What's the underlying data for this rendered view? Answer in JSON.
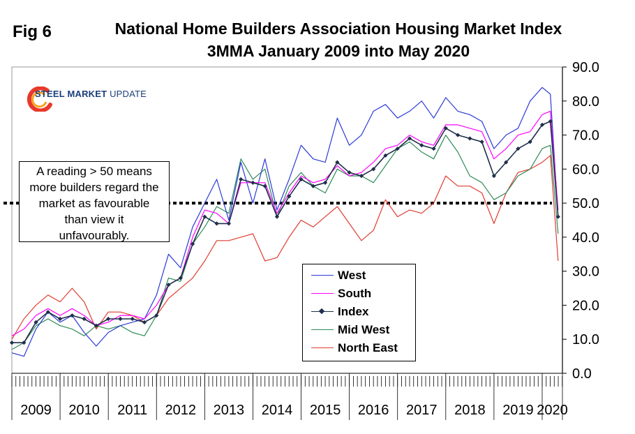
{
  "figure": {
    "fig_label": "Fig 6",
    "title_line1": "National Home Builders Association Housing Market Index",
    "title_line2": "3MMA January 2009 into May 2020",
    "logo_text_bold": "STEEL MARKET",
    "logo_text_normal": " UPDATE",
    "annotation_lines": [
      "A reading > 50 means",
      "more builders regard the",
      "market as favourable",
      "than view it",
      "unfavourably."
    ]
  },
  "chart_data": {
    "type": "line",
    "x_axis": {
      "categories": [
        "2009",
        "2010",
        "2011",
        "2012",
        "2013",
        "2014",
        "2015",
        "2016",
        "2017",
        "2018",
        "2019",
        "2020"
      ],
      "range": [
        2009.0,
        2020.42
      ]
    },
    "y_axis": {
      "position": "right",
      "ylim": [
        0,
        90
      ],
      "ticks": [
        "0.0",
        "10.0",
        "20.0",
        "30.0",
        "40.0",
        "50.0",
        "60.0",
        "70.0",
        "80.0",
        "90.0"
      ]
    },
    "reference_line": {
      "y": 50,
      "style": "dotted"
    },
    "legend_position": "center-bottom",
    "colors": {
      "West": "#2b3bd6",
      "South": "#ff00ff",
      "Index": "#1f2f4a",
      "Mid West": "#2e8b57",
      "North East": "#e03c31"
    },
    "series": [
      {
        "name": "West",
        "points": [
          [
            2009.0,
            6
          ],
          [
            2009.25,
            5
          ],
          [
            2009.5,
            13
          ],
          [
            2009.75,
            18
          ],
          [
            2010.0,
            15
          ],
          [
            2010.25,
            17
          ],
          [
            2010.5,
            12
          ],
          [
            2010.75,
            8
          ],
          [
            2011.0,
            12
          ],
          [
            2011.25,
            14
          ],
          [
            2011.5,
            15
          ],
          [
            2011.75,
            16
          ],
          [
            2012.0,
            23
          ],
          [
            2012.25,
            35
          ],
          [
            2012.5,
            31
          ],
          [
            2012.75,
            43
          ],
          [
            2013.0,
            50
          ],
          [
            2013.25,
            57
          ],
          [
            2013.5,
            45
          ],
          [
            2013.75,
            62
          ],
          [
            2014.0,
            50
          ],
          [
            2014.25,
            63
          ],
          [
            2014.5,
            48
          ],
          [
            2014.75,
            57
          ],
          [
            2015.0,
            67
          ],
          [
            2015.25,
            63
          ],
          [
            2015.5,
            62
          ],
          [
            2015.75,
            75
          ],
          [
            2016.0,
            67
          ],
          [
            2016.25,
            70
          ],
          [
            2016.5,
            77
          ],
          [
            2016.75,
            79
          ],
          [
            2017.0,
            75
          ],
          [
            2017.25,
            77
          ],
          [
            2017.5,
            80
          ],
          [
            2017.75,
            75
          ],
          [
            2018.0,
            81
          ],
          [
            2018.25,
            77
          ],
          [
            2018.5,
            76
          ],
          [
            2018.75,
            74
          ],
          [
            2019.0,
            66
          ],
          [
            2019.25,
            70
          ],
          [
            2019.5,
            72
          ],
          [
            2019.75,
            80
          ],
          [
            2020.0,
            84
          ],
          [
            2020.17,
            82
          ],
          [
            2020.33,
            46
          ]
        ]
      },
      {
        "name": "South",
        "points": [
          [
            2009.0,
            11
          ],
          [
            2009.25,
            13
          ],
          [
            2009.5,
            17
          ],
          [
            2009.75,
            19
          ],
          [
            2010.0,
            17
          ],
          [
            2010.25,
            19
          ],
          [
            2010.5,
            17
          ],
          [
            2010.75,
            14
          ],
          [
            2011.0,
            15
          ],
          [
            2011.25,
            17
          ],
          [
            2011.5,
            17
          ],
          [
            2011.75,
            16
          ],
          [
            2012.0,
            20
          ],
          [
            2012.25,
            26
          ],
          [
            2012.5,
            28
          ],
          [
            2012.75,
            40
          ],
          [
            2013.0,
            48
          ],
          [
            2013.25,
            47
          ],
          [
            2013.5,
            44
          ],
          [
            2013.75,
            56
          ],
          [
            2014.0,
            56
          ],
          [
            2014.25,
            56
          ],
          [
            2014.5,
            47
          ],
          [
            2014.75,
            53
          ],
          [
            2015.0,
            58
          ],
          [
            2015.25,
            56
          ],
          [
            2015.5,
            57
          ],
          [
            2015.75,
            61
          ],
          [
            2016.0,
            58
          ],
          [
            2016.25,
            59
          ],
          [
            2016.5,
            62
          ],
          [
            2016.75,
            66
          ],
          [
            2017.0,
            67
          ],
          [
            2017.25,
            70
          ],
          [
            2017.5,
            68
          ],
          [
            2017.75,
            67
          ],
          [
            2018.0,
            73
          ],
          [
            2018.25,
            73
          ],
          [
            2018.5,
            72
          ],
          [
            2018.75,
            71
          ],
          [
            2019.0,
            63
          ],
          [
            2019.25,
            66
          ],
          [
            2019.5,
            70
          ],
          [
            2019.75,
            71
          ],
          [
            2020.0,
            76
          ],
          [
            2020.17,
            77
          ],
          [
            2020.33,
            48
          ]
        ]
      },
      {
        "name": "Index",
        "points": [
          [
            2009.0,
            9
          ],
          [
            2009.25,
            9
          ],
          [
            2009.5,
            15
          ],
          [
            2009.75,
            18
          ],
          [
            2010.0,
            16
          ],
          [
            2010.25,
            17
          ],
          [
            2010.5,
            16
          ],
          [
            2010.75,
            14
          ],
          [
            2011.0,
            16
          ],
          [
            2011.25,
            16
          ],
          [
            2011.5,
            16
          ],
          [
            2011.75,
            15
          ],
          [
            2012.0,
            17
          ],
          [
            2012.25,
            26
          ],
          [
            2012.5,
            28
          ],
          [
            2012.75,
            38
          ],
          [
            2013.0,
            46
          ],
          [
            2013.25,
            44
          ],
          [
            2013.5,
            44
          ],
          [
            2013.75,
            57
          ],
          [
            2014.0,
            56
          ],
          [
            2014.25,
            55
          ],
          [
            2014.5,
            46
          ],
          [
            2014.75,
            52
          ],
          [
            2015.0,
            57
          ],
          [
            2015.25,
            55
          ],
          [
            2015.5,
            56
          ],
          [
            2015.75,
            62
          ],
          [
            2016.0,
            59
          ],
          [
            2016.25,
            58
          ],
          [
            2016.5,
            60
          ],
          [
            2016.75,
            64
          ],
          [
            2017.0,
            66
          ],
          [
            2017.25,
            69
          ],
          [
            2017.5,
            67
          ],
          [
            2017.75,
            66
          ],
          [
            2018.0,
            72
          ],
          [
            2018.25,
            70
          ],
          [
            2018.5,
            69
          ],
          [
            2018.75,
            68
          ],
          [
            2019.0,
            58
          ],
          [
            2019.25,
            62
          ],
          [
            2019.5,
            66
          ],
          [
            2019.75,
            68
          ],
          [
            2020.0,
            73
          ],
          [
            2020.17,
            74
          ],
          [
            2020.33,
            46
          ]
        ]
      },
      {
        "name": "Mid West",
        "points": [
          [
            2009.0,
            7
          ],
          [
            2009.25,
            9
          ],
          [
            2009.5,
            14
          ],
          [
            2009.75,
            16
          ],
          [
            2010.0,
            14
          ],
          [
            2010.25,
            13
          ],
          [
            2010.5,
            11
          ],
          [
            2010.75,
            14
          ],
          [
            2011.0,
            13
          ],
          [
            2011.25,
            14
          ],
          [
            2011.5,
            12
          ],
          [
            2011.75,
            11
          ],
          [
            2012.0,
            17
          ],
          [
            2012.25,
            28
          ],
          [
            2012.5,
            27
          ],
          [
            2012.75,
            38
          ],
          [
            2013.0,
            43
          ],
          [
            2013.25,
            49
          ],
          [
            2013.5,
            47
          ],
          [
            2013.75,
            63
          ],
          [
            2014.0,
            57
          ],
          [
            2014.25,
            60
          ],
          [
            2014.5,
            46
          ],
          [
            2014.75,
            55
          ],
          [
            2015.0,
            59
          ],
          [
            2015.25,
            55
          ],
          [
            2015.5,
            53
          ],
          [
            2015.75,
            60
          ],
          [
            2016.0,
            58
          ],
          [
            2016.25,
            58
          ],
          [
            2016.5,
            56
          ],
          [
            2016.75,
            61
          ],
          [
            2017.0,
            66
          ],
          [
            2017.25,
            68
          ],
          [
            2017.5,
            65
          ],
          [
            2017.75,
            63
          ],
          [
            2018.0,
            70
          ],
          [
            2018.25,
            65
          ],
          [
            2018.5,
            58
          ],
          [
            2018.75,
            56
          ],
          [
            2019.0,
            51
          ],
          [
            2019.25,
            53
          ],
          [
            2019.5,
            58
          ],
          [
            2019.75,
            60
          ],
          [
            2020.0,
            66
          ],
          [
            2020.17,
            67
          ],
          [
            2020.33,
            41
          ]
        ]
      },
      {
        "name": "North East",
        "points": [
          [
            2009.0,
            10
          ],
          [
            2009.25,
            16
          ],
          [
            2009.5,
            20
          ],
          [
            2009.75,
            23
          ],
          [
            2010.0,
            21
          ],
          [
            2010.25,
            25
          ],
          [
            2010.5,
            21
          ],
          [
            2010.75,
            13
          ],
          [
            2011.0,
            18
          ],
          [
            2011.25,
            18
          ],
          [
            2011.5,
            17
          ],
          [
            2011.75,
            15
          ],
          [
            2012.0,
            17
          ],
          [
            2012.25,
            22
          ],
          [
            2012.5,
            25
          ],
          [
            2012.75,
            28
          ],
          [
            2013.0,
            33
          ],
          [
            2013.25,
            39
          ],
          [
            2013.5,
            39
          ],
          [
            2013.75,
            40
          ],
          [
            2014.0,
            41
          ],
          [
            2014.25,
            33
          ],
          [
            2014.5,
            34
          ],
          [
            2014.75,
            40
          ],
          [
            2015.0,
            45
          ],
          [
            2015.25,
            43
          ],
          [
            2015.5,
            46
          ],
          [
            2015.75,
            49
          ],
          [
            2016.0,
            44
          ],
          [
            2016.25,
            39
          ],
          [
            2016.5,
            42
          ],
          [
            2016.75,
            51
          ],
          [
            2017.0,
            46
          ],
          [
            2017.25,
            48
          ],
          [
            2017.5,
            47
          ],
          [
            2017.75,
            50
          ],
          [
            2018.0,
            58
          ],
          [
            2018.25,
            55
          ],
          [
            2018.5,
            55
          ],
          [
            2018.75,
            53
          ],
          [
            2019.0,
            44
          ],
          [
            2019.25,
            53
          ],
          [
            2019.5,
            59
          ],
          [
            2019.75,
            60
          ],
          [
            2020.0,
            62
          ],
          [
            2020.17,
            64
          ],
          [
            2020.33,
            33
          ]
        ]
      }
    ]
  }
}
